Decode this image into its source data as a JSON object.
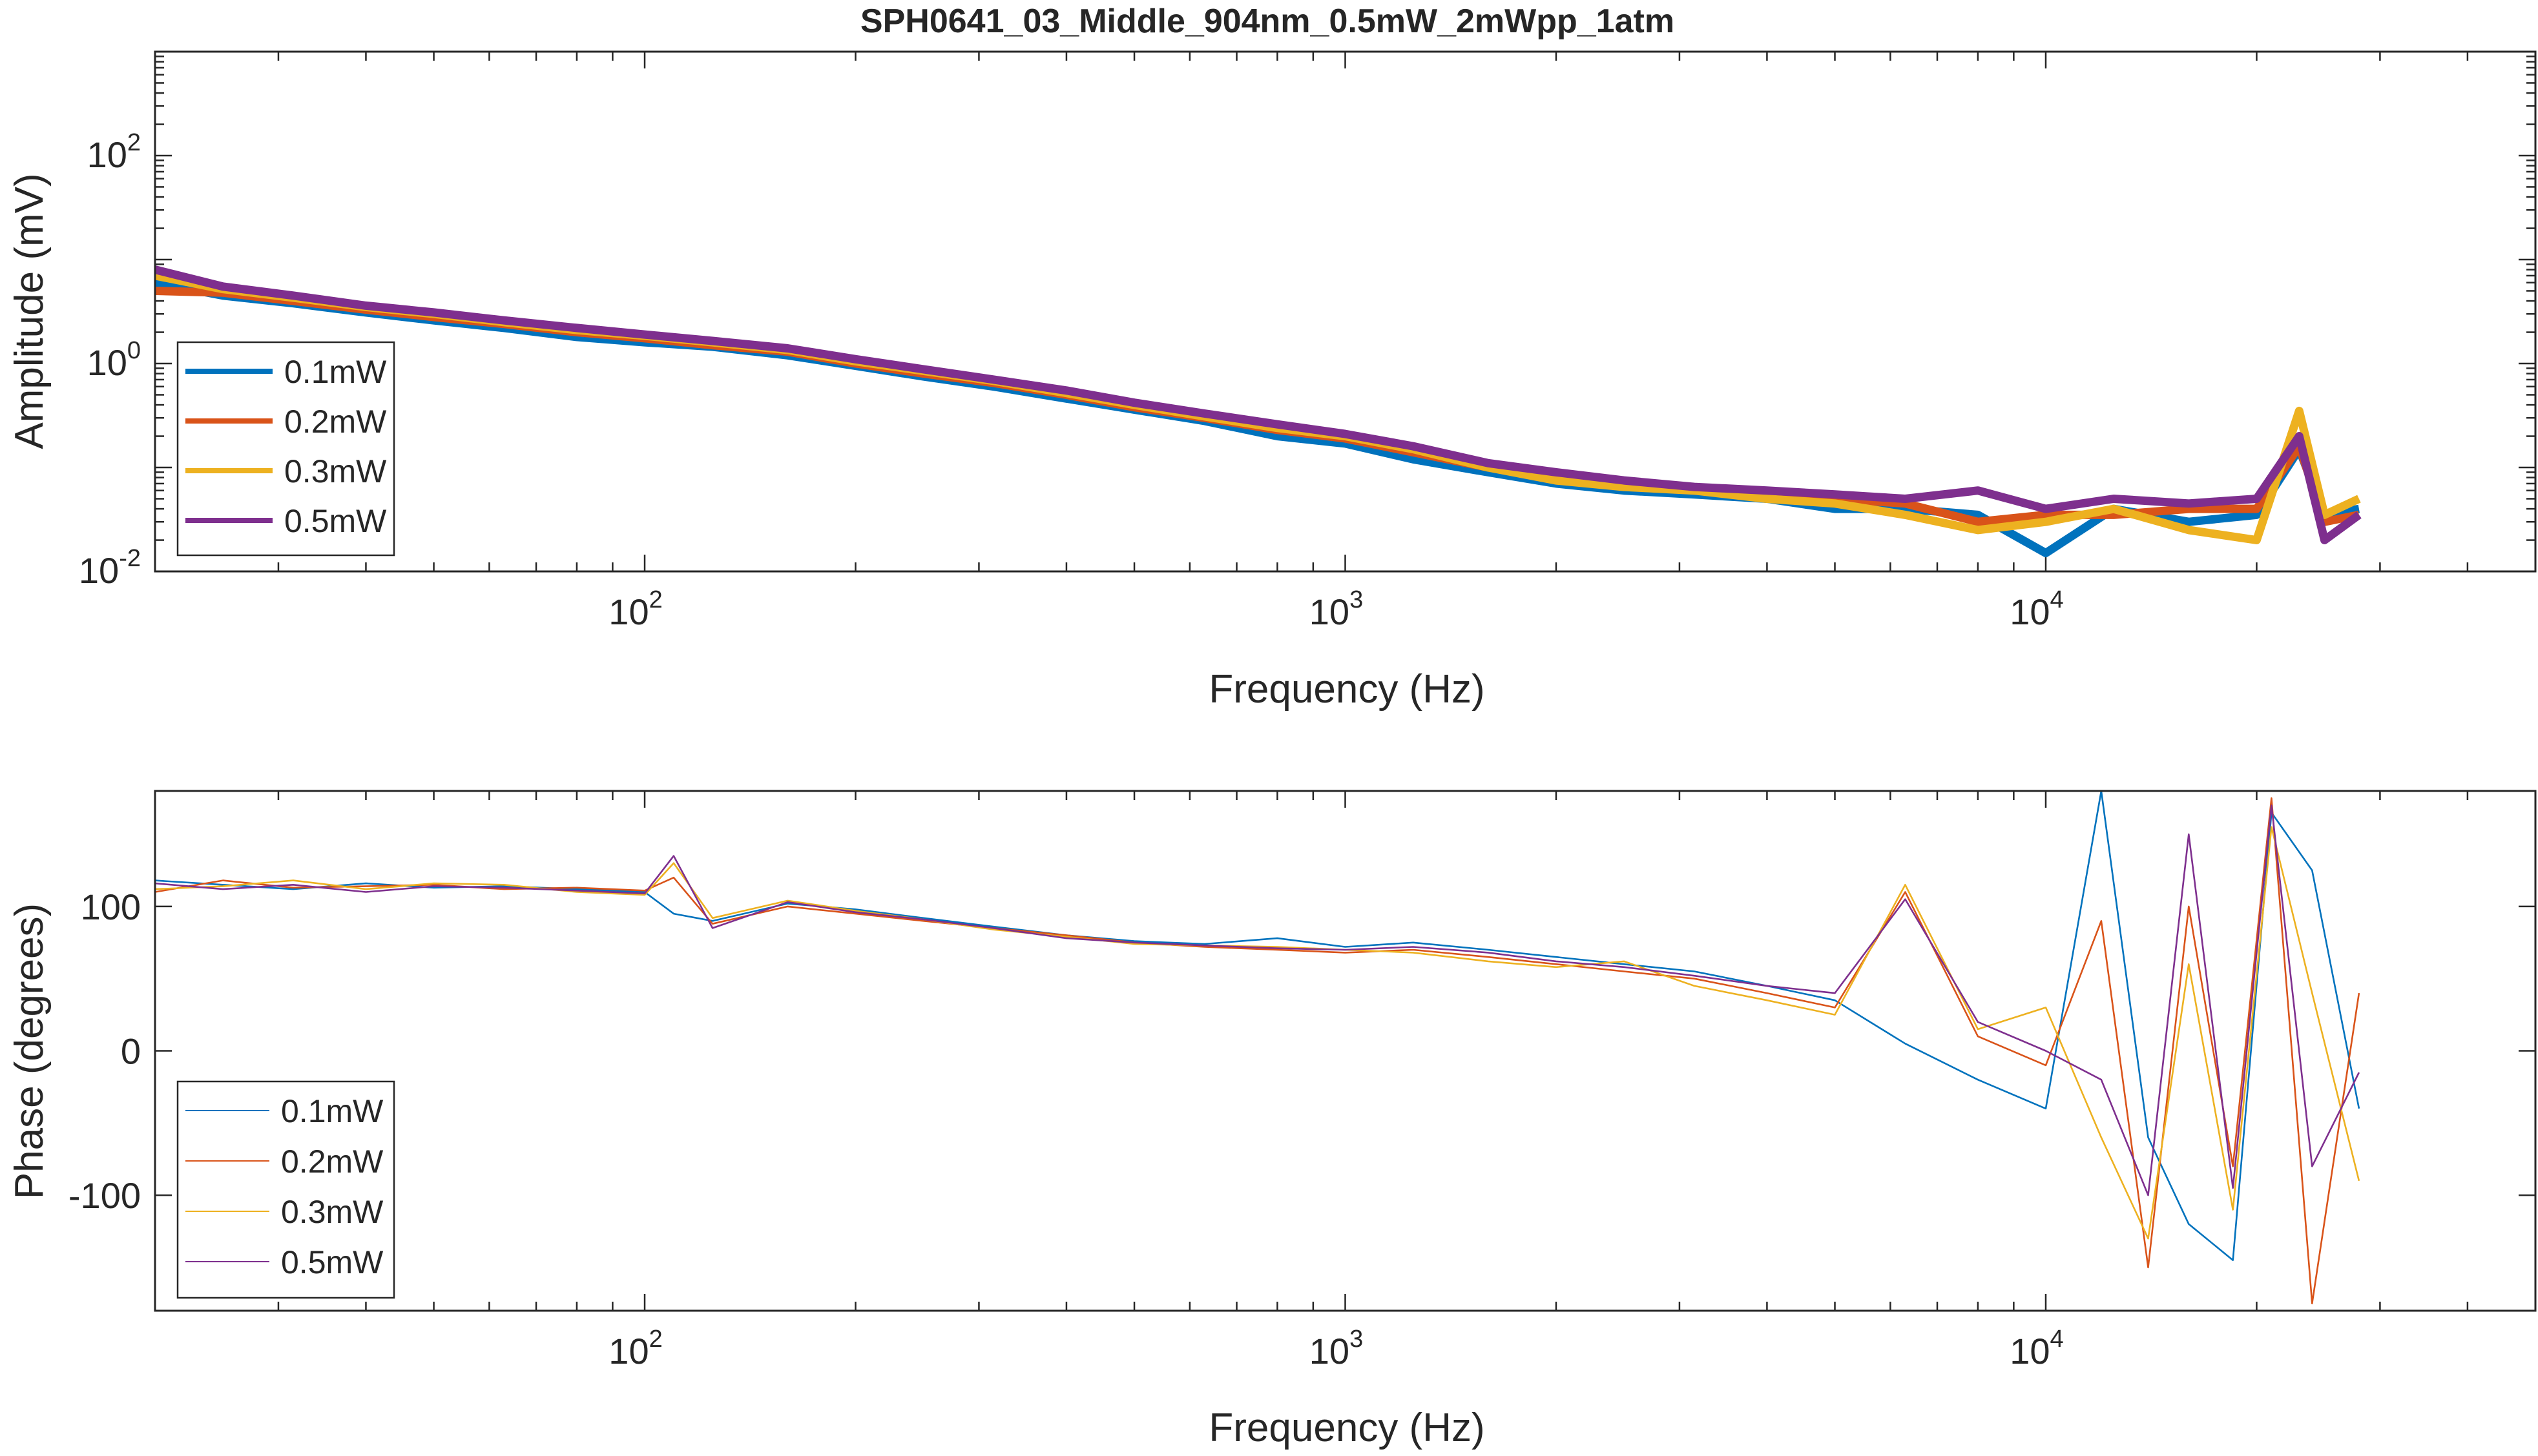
{
  "chart_data": [
    {
      "type": "line",
      "title": "SPH0641_03_Middle_904nm_0.5mW_2mWpp_1atm",
      "xlabel": "Frequency (Hz)",
      "ylabel": "Amplitude (mV)",
      "xscale": "log",
      "yscale": "log",
      "xlim": [
        20,
        50000
      ],
      "ylim": [
        0.01,
        1000
      ],
      "xtick_values": [
        100,
        1000,
        10000
      ],
      "xtick_base": [
        "10",
        "10",
        "10"
      ],
      "xtick_exp": [
        "2",
        "3",
        "4"
      ],
      "ytick_values": [
        0.01,
        1,
        100
      ],
      "ytick_base": [
        "10",
        "10",
        "10"
      ],
      "ytick_exp": [
        "-2",
        "0",
        "2"
      ],
      "legend_location": "lower-left",
      "line_width": "thick",
      "x": [
        20,
        25,
        31.5,
        40,
        50,
        63,
        80,
        100,
        125,
        160,
        200,
        250,
        315,
        400,
        500,
        630,
        800,
        1000,
        1250,
        1600,
        2000,
        2500,
        3150,
        4000,
        5000,
        6300,
        8000,
        10000,
        12500,
        16000,
        20000,
        23000,
        25000,
        28000
      ],
      "series": [
        {
          "name": "0.1mW",
          "color": "#0072BD",
          "values": [
            6.0,
            4.5,
            3.8,
            3.1,
            2.6,
            2.2,
            1.8,
            1.6,
            1.45,
            1.2,
            0.95,
            0.75,
            0.6,
            0.46,
            0.36,
            0.28,
            0.2,
            0.17,
            0.12,
            0.09,
            0.07,
            0.06,
            0.055,
            0.05,
            0.04,
            0.04,
            0.035,
            0.015,
            0.04,
            0.03,
            0.035,
            0.15,
            0.035,
            0.04
          ]
        },
        {
          "name": "0.2mW",
          "color": "#D95319",
          "values": [
            5.0,
            4.8,
            4.0,
            3.3,
            2.8,
            2.4,
            2.0,
            1.75,
            1.5,
            1.3,
            1.0,
            0.8,
            0.65,
            0.5,
            0.38,
            0.3,
            0.23,
            0.19,
            0.14,
            0.1,
            0.08,
            0.07,
            0.06,
            0.055,
            0.05,
            0.045,
            0.03,
            0.035,
            0.035,
            0.04,
            0.04,
            0.16,
            0.03,
            0.035
          ]
        },
        {
          "name": "0.3mW",
          "color": "#EDB120",
          "values": [
            7.0,
            5.2,
            4.3,
            3.5,
            3.0,
            2.5,
            2.1,
            1.85,
            1.6,
            1.35,
            1.05,
            0.85,
            0.68,
            0.52,
            0.4,
            0.31,
            0.24,
            0.2,
            0.15,
            0.1,
            0.075,
            0.065,
            0.06,
            0.05,
            0.045,
            0.035,
            0.025,
            0.03,
            0.04,
            0.025,
            0.02,
            0.35,
            0.035,
            0.05
          ]
        },
        {
          "name": "0.5mW",
          "color": "#7E2F8E",
          "values": [
            8.0,
            5.5,
            4.5,
            3.6,
            3.1,
            2.6,
            2.2,
            1.9,
            1.65,
            1.4,
            1.1,
            0.88,
            0.7,
            0.55,
            0.42,
            0.33,
            0.26,
            0.21,
            0.16,
            0.11,
            0.09,
            0.075,
            0.065,
            0.06,
            0.055,
            0.05,
            0.06,
            0.04,
            0.05,
            0.045,
            0.05,
            0.2,
            0.02,
            0.035
          ]
        }
      ]
    },
    {
      "type": "line",
      "xlabel": "Frequency (Hz)",
      "ylabel": "Phase (degrees)",
      "xscale": "log",
      "yscale": "linear",
      "xlim": [
        20,
        50000
      ],
      "ylim": [
        -180,
        180
      ],
      "xtick_values": [
        100,
        1000,
        10000
      ],
      "xtick_base": [
        "10",
        "10",
        "10"
      ],
      "xtick_exp": [
        "2",
        "3",
        "4"
      ],
      "ytick_values": [
        -100,
        0,
        100
      ],
      "ytick_labels": [
        "-100",
        "0",
        "100"
      ],
      "legend_location": "lower-left",
      "line_width": "thin",
      "x": [
        20,
        25,
        31.5,
        40,
        50,
        63,
        80,
        100,
        110,
        125,
        160,
        200,
        250,
        315,
        400,
        500,
        630,
        800,
        1000,
        1250,
        1600,
        2000,
        2500,
        3150,
        4000,
        5000,
        6300,
        8000,
        10000,
        12000,
        14000,
        16000,
        18500,
        21000,
        24000,
        28000
      ],
      "series": [
        {
          "name": "0.1mW",
          "color": "#0072BD",
          "values": [
            118,
            115,
            112,
            116,
            113,
            114,
            112,
            110,
            95,
            90,
            102,
            98,
            92,
            86,
            80,
            76,
            74,
            78,
            72,
            75,
            70,
            65,
            60,
            55,
            45,
            35,
            5,
            -20,
            -40,
            180,
            -60,
            -120,
            -145,
            165,
            125,
            -40
          ]
        },
        {
          "name": "0.2mW",
          "color": "#D95319",
          "values": [
            110,
            118,
            113,
            114,
            115,
            112,
            113,
            111,
            120,
            88,
            100,
            95,
            90,
            85,
            80,
            75,
            72,
            70,
            68,
            70,
            65,
            60,
            55,
            50,
            40,
            30,
            110,
            10,
            -10,
            90,
            -150,
            100,
            -80,
            175,
            -175,
            40
          ]
        },
        {
          "name": "0.3mW",
          "color": "#EDB120",
          "values": [
            112,
            114,
            118,
            112,
            116,
            115,
            110,
            108,
            130,
            92,
            104,
            97,
            91,
            84,
            79,
            74,
            73,
            72,
            70,
            68,
            62,
            58,
            62,
            45,
            35,
            25,
            115,
            15,
            30,
            -60,
            -130,
            60,
            -110,
            155,
            40,
            -90
          ]
        },
        {
          "name": "0.5mW",
          "color": "#7E2F8E",
          "values": [
            116,
            112,
            115,
            110,
            114,
            113,
            111,
            109,
            135,
            85,
            103,
            96,
            91,
            85,
            78,
            75,
            73,
            71,
            70,
            72,
            68,
            62,
            58,
            52,
            45,
            40,
            105,
            20,
            0,
            -20,
            -100,
            150,
            -95,
            170,
            -80,
            -15
          ]
        }
      ]
    }
  ]
}
